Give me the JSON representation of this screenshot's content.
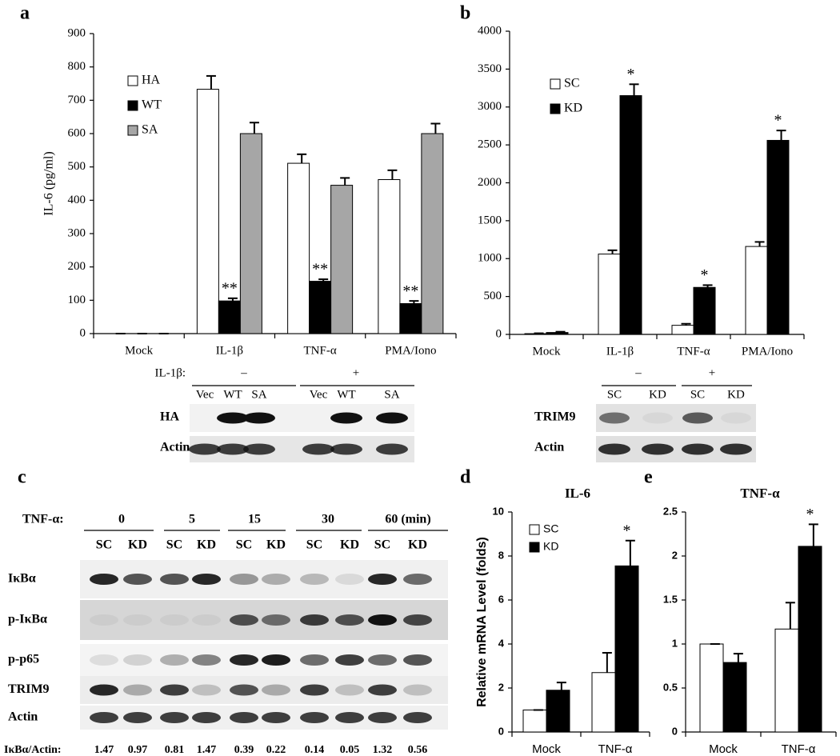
{
  "panels": [
    "a",
    "b",
    "c",
    "d",
    "e"
  ],
  "chart_data": [
    {
      "type": "bar",
      "ylabel": "IL-6 (pg/ml)",
      "categories": [
        "Mock",
        "IL-1β",
        "TNF-α",
        "PMA/Iono"
      ],
      "ylim": [
        0,
        900
      ],
      "yticks": [
        0,
        100,
        200,
        300,
        400,
        500,
        600,
        700,
        800,
        900
      ],
      "legend": "upper-left",
      "series": [
        {
          "name": "HA",
          "color": "#ffffff",
          "values": [
            0,
            733,
            511,
            462
          ],
          "errors": [
            0,
            40,
            27,
            28
          ]
        },
        {
          "name": "WT",
          "color": "#000000",
          "values": [
            0,
            98,
            157,
            90
          ],
          "errors": [
            0,
            8,
            6,
            8
          ],
          "labels": [
            null,
            "**",
            "**",
            "**"
          ]
        },
        {
          "name": "SA",
          "color": "#a6a6a6",
          "values": [
            0,
            600,
            445,
            600
          ],
          "errors": [
            0,
            33,
            22,
            30
          ]
        }
      ]
    },
    {
      "type": "bar",
      "categories": [
        "Mock",
        "IL-1β",
        "TNF-α",
        "PMA/Iono"
      ],
      "ylim": [
        0,
        4000
      ],
      "yticks": [
        0,
        500,
        1000,
        1500,
        2000,
        2500,
        3000,
        3500,
        4000
      ],
      "legend": "upper-left",
      "series": [
        {
          "name": "SC",
          "color": "#ffffff",
          "values": [
            10,
            1060,
            120,
            1160
          ],
          "errors": [
            5,
            50,
            20,
            60
          ]
        },
        {
          "name": "KD",
          "color": "#000000",
          "values": [
            25,
            3150,
            620,
            2560
          ],
          "errors": [
            10,
            150,
            30,
            130
          ],
          "labels": [
            null,
            "*",
            "*",
            "*"
          ]
        }
      ]
    },
    {
      "type": "bar",
      "title": "IL-6",
      "ylabel": "Relative mRNA Level (folds)",
      "categories": [
        "Mock",
        "TNF-α"
      ],
      "ylim": [
        0,
        10
      ],
      "yticks": [
        0,
        2,
        4,
        6,
        8,
        10
      ],
      "legend": "upper-left",
      "series": [
        {
          "name": "SC",
          "color": "#ffffff",
          "values": [
            1,
            2.7
          ],
          "errors": [
            0,
            0.9
          ]
        },
        {
          "name": "KD",
          "color": "#000000",
          "values": [
            1.9,
            7.55
          ],
          "errors": [
            0.35,
            1.15
          ],
          "labels": [
            null,
            "*"
          ]
        }
      ]
    },
    {
      "type": "bar",
      "title": "TNF-α",
      "categories": [
        "Mock",
        "TNF-α"
      ],
      "ylim": [
        0,
        2.5
      ],
      "yticks": [
        0,
        0.5,
        1,
        1.5,
        2,
        2.5
      ],
      "series": [
        {
          "color": "#ffffff",
          "values": [
            1,
            1.17
          ],
          "errors": [
            0,
            0.3
          ]
        },
        {
          "color": "#000000",
          "values": [
            0.79,
            2.11
          ],
          "errors": [
            0.1,
            0.25
          ],
          "labels": [
            null,
            "*"
          ]
        }
      ]
    }
  ],
  "blot_a": {
    "treatment_label": "IL-1β:",
    "groups": [
      "–",
      "+"
    ],
    "lanes": [
      "Vec",
      "WT",
      "SA",
      "Vec",
      "WT",
      "SA"
    ],
    "rows": [
      "HA",
      "Actin"
    ]
  },
  "blot_b": {
    "groups": [
      "–",
      "+"
    ],
    "lanes": [
      "SC",
      "KD",
      "SC",
      "KD"
    ],
    "rows": [
      "TRIM9",
      "Actin"
    ]
  },
  "blot_c": {
    "treatment_label": "TNF-α:",
    "times": [
      "0",
      "5",
      "15",
      "30",
      "60 (min)"
    ],
    "lanes": [
      "SC",
      "KD",
      "SC",
      "KD",
      "SC",
      "KD",
      "SC",
      "KD",
      "SC",
      "KD"
    ],
    "rows": [
      "IκBα",
      "p-IκBα",
      "p-p65",
      "TRIM9",
      "Actin"
    ],
    "ratio_label": "IκBα/Actin:",
    "ratios": [
      1.47,
      0.97,
      0.81,
      1.47,
      0.39,
      0.22,
      0.14,
      0.05,
      1.32,
      0.56
    ]
  }
}
